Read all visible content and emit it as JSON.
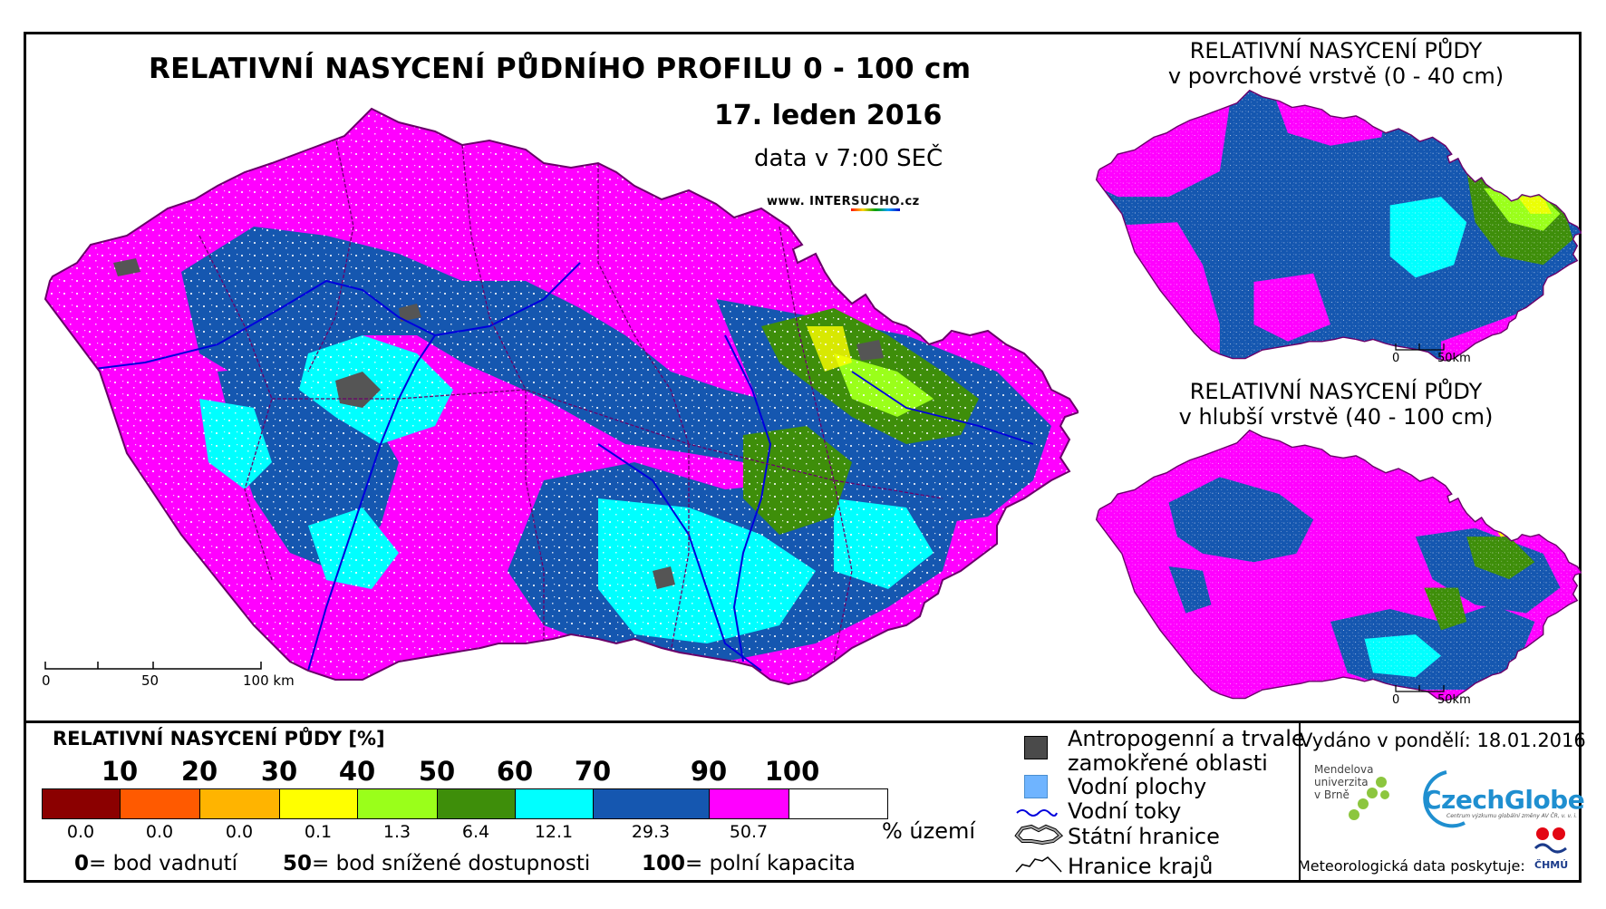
{
  "header": {
    "title": "RELATIVNÍ NASYCENÍ PŮDNÍHO PROFILU 0 - 100 cm",
    "date": "17. leden 2016",
    "time": "data v 7:00 SEČ",
    "url_prefix": "www. INTER",
    "url_mid": "SUCHO",
    "url_suffix": ".cz"
  },
  "insets": {
    "surface_title_1": "RELATIVNÍ NASYCENÍ PŮDY",
    "surface_title_2": "v povrchové vrstvě (0 - 40 cm)",
    "deep_title_1": "RELATIVNÍ NASYCENÍ PŮDY",
    "deep_title_2": "v hlubší vrstvě (40 - 100 cm)",
    "scale_0": "0",
    "scale_50": "50km"
  },
  "main_scale": {
    "l0": "0",
    "l50": "50",
    "l100": "100 km"
  },
  "legend": {
    "title": "RELATIVNÍ NASYCENÍ PŮDY [%]",
    "ticks": [
      "10",
      "20",
      "30",
      "40",
      "50",
      "60",
      "70",
      "90",
      "100"
    ],
    "classes": [
      {
        "color": "#8b0000",
        "share": "0.0"
      },
      {
        "color": "#ff5a00",
        "share": "0.0"
      },
      {
        "color": "#ffb400",
        "share": "0.0"
      },
      {
        "color": "#ffff00",
        "share": "0.1"
      },
      {
        "color": "#9aff1a",
        "share": "1.3"
      },
      {
        "color": "#3e8e0a",
        "share": "6.4"
      },
      {
        "color": "#00ffff",
        "share": "12.1"
      },
      {
        "color": "#1557b0",
        "share": "29.3"
      },
      {
        "color": "#ff00ff",
        "share": "50.7"
      }
    ],
    "unit": "% území",
    "note_0_num": "0",
    "note_0_text": "= bod vadnutí",
    "note_50_num": "50",
    "note_50_text": "= bod snížené dostupnosti",
    "note_100_num": "100",
    "note_100_text": "= polní kapacita"
  },
  "key": {
    "anthro_1": "Antropogenní a trvale",
    "anthro_2": "zamokřené oblasti",
    "water_bodies": "Vodní plochy",
    "rivers": "Vodní toky",
    "state_border": "Státní hranice",
    "regions_border": "Hranice krajů"
  },
  "credits": {
    "issued": "Vydáno v pondělí: 18.01.2016",
    "mendel_1": "Mendelova",
    "mendel_2": "univerzita",
    "mendel_3": "v Brně",
    "czechglobe": "CzechGlobe",
    "czechglobe_sub": "Centrum výzkumu globální změny AV ČR, v. v. i.",
    "meteo": "Meteorologická data poskytuje:",
    "chmu": "ČHMÚ"
  }
}
